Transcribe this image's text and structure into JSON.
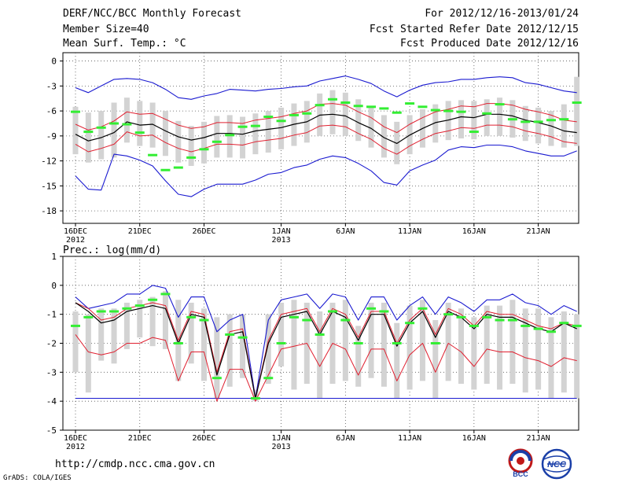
{
  "header": {
    "title": "DERF/NCC/BCC Monthly Forecast",
    "member_size": "Member Size=40",
    "variable": "Mean Surf. Temp.: °C",
    "forecast_range": "For 2012/12/16-2013/01/24",
    "started_refer": "Fcst Started Refer Date 2012/12/15",
    "produced": "Fcst Produced Date 2012/12/16"
  },
  "footer": {
    "url": "http://cmdp.ncc.cma.gov.cn",
    "grads": "GrADS: COLA/IGES",
    "logo_bcc": "BCC",
    "logo_ncc": "NCC"
  },
  "colors": {
    "bar": "#d3d3d3",
    "median": "#33ee33",
    "mean": "#000000",
    "band": "#e02030",
    "envelope": "#1a1ad0"
  },
  "chart_data": [
    {
      "type": "box-line",
      "title": "Mean Surf. Temp.: °C",
      "ylabel": "°C",
      "ylim": [
        -19.5,
        1
      ],
      "yticks": [
        0,
        -3,
        -6,
        -9,
        -12,
        -15,
        -18
      ],
      "x_days": 40,
      "x_ticks": [
        {
          "day": 1,
          "label": "16DEC",
          "sub": "2012"
        },
        {
          "day": 6,
          "label": "21DEC",
          "sub": ""
        },
        {
          "day": 11,
          "label": "26DEC",
          "sub": ""
        },
        {
          "day": 17,
          "label": "1JAN",
          "sub": "2013"
        },
        {
          "day": 22,
          "label": "6JAN",
          "sub": ""
        },
        {
          "day": 27,
          "label": "11JAN",
          "sub": ""
        },
        {
          "day": 32,
          "label": "16JAN",
          "sub": ""
        },
        {
          "day": 37,
          "label": "21JAN",
          "sub": ""
        }
      ],
      "mean": [
        -8.8,
        -9.6,
        -9.2,
        -8.6,
        -7.3,
        -7.7,
        -7.6,
        -8.4,
        -9.1,
        -9.5,
        -9.2,
        -8.7,
        -8.7,
        -8.8,
        -8.4,
        -8.2,
        -8.0,
        -7.6,
        -7.3,
        -6.5,
        -6.4,
        -6.6,
        -7.4,
        -8.1,
        -9.2,
        -9.9,
        -8.9,
        -8.1,
        -7.4,
        -7.1,
        -6.7,
        -6.8,
        -6.4,
        -6.4,
        -6.6,
        -7.1,
        -7.4,
        -7.8,
        -8.4,
        -8.6
      ],
      "band_upper": [
        -7.6,
        -8.3,
        -7.9,
        -7.2,
        -6.1,
        -6.4,
        -6.3,
        -7.0,
        -7.7,
        -8.1,
        -7.9,
        -7.4,
        -7.4,
        -7.5,
        -7.1,
        -6.9,
        -6.7,
        -6.3,
        -6.0,
        -5.2,
        -5.1,
        -5.3,
        -6.1,
        -6.8,
        -7.9,
        -8.6,
        -7.6,
        -6.8,
        -6.1,
        -5.8,
        -5.4,
        -5.5,
        -5.1,
        -5.1,
        -5.3,
        -5.8,
        -6.1,
        -6.5,
        -7.1,
        -7.3
      ],
      "band_lower": [
        -10.0,
        -10.9,
        -10.5,
        -10.0,
        -8.5,
        -9.0,
        -8.9,
        -9.8,
        -10.5,
        -10.9,
        -10.5,
        -10.0,
        -10.0,
        -10.1,
        -9.7,
        -9.5,
        -9.3,
        -8.9,
        -8.6,
        -7.8,
        -7.7,
        -7.9,
        -8.7,
        -9.4,
        -10.5,
        -11.2,
        -10.2,
        -9.4,
        -8.7,
        -8.4,
        -8.0,
        -8.1,
        -7.7,
        -7.7,
        -7.9,
        -8.4,
        -8.7,
        -9.1,
        -9.7,
        -9.9
      ],
      "envelope_max": [
        -3.2,
        -3.8,
        -3.0,
        -2.2,
        -2.1,
        -2.2,
        -2.6,
        -3.4,
        -4.4,
        -4.6,
        -4.2,
        -3.9,
        -3.4,
        -3.5,
        -3.6,
        -3.4,
        -3.3,
        -3.1,
        -3.0,
        -2.4,
        -2.1,
        -1.8,
        -2.2,
        -2.7,
        -3.6,
        -4.3,
        -3.5,
        -2.9,
        -2.6,
        -2.5,
        -2.2,
        -2.2,
        -2.0,
        -1.9,
        -2.0,
        -2.6,
        -2.8,
        -3.2,
        -3.6,
        -3.8
      ],
      "envelope_min": [
        -13.8,
        -15.4,
        -15.5,
        -11.2,
        -11.4,
        -11.9,
        -12.6,
        -14.4,
        -16.0,
        -16.3,
        -15.4,
        -14.8,
        -14.8,
        -14.8,
        -14.3,
        -13.6,
        -13.4,
        -12.8,
        -12.5,
        -11.8,
        -11.4,
        -11.6,
        -12.3,
        -13.2,
        -14.6,
        -14.9,
        -13.2,
        -12.5,
        -11.9,
        -10.7,
        -10.3,
        -10.4,
        -10.1,
        -10.1,
        -10.3,
        -10.8,
        -11.1,
        -11.4,
        -11.4,
        -10.8
      ],
      "box_top": [
        -5.5,
        -6.2,
        -6.0,
        -5.0,
        -4.4,
        -4.8,
        -5.0,
        -6.0,
        -7.2,
        -7.8,
        -7.3,
        -6.6,
        -6.5,
        -6.7,
        -6.3,
        -6.0,
        -5.6,
        -5.1,
        -4.8,
        -3.9,
        -3.5,
        -3.8,
        -4.6,
        -5.5,
        -6.5,
        -7.3,
        -6.5,
        -5.8,
        -5.2,
        -4.8,
        -4.7,
        -4.8,
        -4.6,
        -4.4,
        -4.7,
        -5.4,
        -5.6,
        -6.0,
        -5.2,
        -1.9
      ],
      "box_bottom": [
        -11.2,
        -12.2,
        -11.8,
        -11.6,
        -9.8,
        -10.2,
        -10.4,
        -11.4,
        -12.2,
        -12.6,
        -12.3,
        -11.6,
        -11.6,
        -11.7,
        -11.2,
        -11.0,
        -10.6,
        -10.2,
        -9.8,
        -9.0,
        -8.8,
        -9.0,
        -9.6,
        -10.4,
        -11.6,
        -12.4,
        -11.2,
        -10.4,
        -9.8,
        -9.5,
        -9.3,
        -9.4,
        -9.0,
        -9.0,
        -9.2,
        -9.6,
        -9.9,
        -10.2,
        -10.4,
        -10.2
      ],
      "median": [
        -6.1,
        -8.5,
        -8.0,
        -7.5,
        -7.6,
        -8.6,
        -11.3,
        -13.1,
        -12.8,
        -11.6,
        -10.6,
        -9.7,
        -8.9,
        -7.9,
        -7.8,
        -6.7,
        -7.2,
        -6.5,
        -6.3,
        -5.3,
        -4.6,
        -5.0,
        -5.4,
        -5.5,
        -5.7,
        -6.2,
        -5.1,
        -5.5,
        -5.9,
        -6.0,
        -6.1,
        -8.5,
        -6.3,
        -5.2,
        -7.0,
        -7.3,
        -7.3,
        -7.1,
        -7.0,
        -5.0
      ]
    },
    {
      "type": "box-line",
      "title": "Prec.: log(mm/d)",
      "ylabel": "log(mm/d)",
      "ylim": [
        -5,
        1
      ],
      "yticks": [
        1,
        0,
        -1,
        -2,
        -3,
        -4,
        -5
      ],
      "x_days": 40,
      "x_ticks": [
        {
          "day": 1,
          "label": "16DEC",
          "sub": "2012"
        },
        {
          "day": 6,
          "label": "21DEC",
          "sub": ""
        },
        {
          "day": 11,
          "label": "26DEC",
          "sub": ""
        },
        {
          "day": 17,
          "label": "1JAN",
          "sub": "2013"
        },
        {
          "day": 22,
          "label": "6JAN",
          "sub": ""
        },
        {
          "day": 27,
          "label": "11JAN",
          "sub": ""
        },
        {
          "day": 32,
          "label": "16JAN",
          "sub": ""
        },
        {
          "day": 37,
          "label": "21JAN",
          "sub": ""
        }
      ],
      "mean": [
        -0.6,
        -0.9,
        -1.3,
        -1.2,
        -0.9,
        -0.8,
        -0.7,
        -0.8,
        -2.0,
        -1.0,
        -1.1,
        -3.1,
        -1.7,
        -1.6,
        -3.9,
        -2.0,
        -1.1,
        -1.0,
        -0.9,
        -1.7,
        -0.9,
        -1.1,
        -1.9,
        -1.0,
        -1.0,
        -2.1,
        -1.3,
        -0.9,
        -1.8,
        -0.9,
        -1.1,
        -1.5,
        -1.0,
        -1.1,
        -1.1,
        -1.3,
        -1.5,
        -1.6,
        -1.3,
        -1.5
      ],
      "band_upper": [
        -0.6,
        -0.8,
        -1.2,
        -1.1,
        -0.8,
        -0.7,
        -0.6,
        -0.7,
        -1.9,
        -0.9,
        -1.0,
        -3.0,
        -1.6,
        -1.5,
        -3.9,
        -1.9,
        -1.0,
        -0.9,
        -0.8,
        -1.6,
        -0.8,
        -1.0,
        -1.8,
        -0.9,
        -0.9,
        -2.0,
        -1.2,
        -0.8,
        -1.7,
        -0.8,
        -1.0,
        -1.4,
        -0.9,
        -1.0,
        -1.0,
        -1.2,
        -1.4,
        -1.5,
        -1.3,
        -1.4
      ],
      "band_lower": [
        -1.7,
        -2.3,
        -2.4,
        -2.3,
        -2.0,
        -2.0,
        -1.8,
        -1.9,
        -3.3,
        -2.3,
        -2.3,
        -4.0,
        -2.9,
        -2.9,
        -4.0,
        -3.1,
        -2.2,
        -2.1,
        -2.0,
        -2.8,
        -2.0,
        -2.2,
        -3.1,
        -2.2,
        -2.2,
        -3.3,
        -2.4,
        -2.0,
        -3.0,
        -2.0,
        -2.3,
        -2.8,
        -2.2,
        -2.3,
        -2.3,
        -2.5,
        -2.6,
        -2.8,
        -2.5,
        -2.6
      ],
      "envelope_max": [
        -0.4,
        -0.8,
        -0.7,
        -0.6,
        -0.3,
        -0.3,
        0.0,
        -0.1,
        -1.1,
        -0.4,
        -0.4,
        -1.6,
        -1.2,
        -1.0,
        -3.9,
        -1.2,
        -0.5,
        -0.4,
        -0.3,
        -0.8,
        -0.3,
        -0.4,
        -1.2,
        -0.4,
        -0.4,
        -1.2,
        -0.7,
        -0.4,
        -1.0,
        -0.4,
        -0.6,
        -0.9,
        -0.5,
        -0.5,
        -0.3,
        -0.6,
        -0.7,
        -1.0,
        -0.7,
        -0.9
      ],
      "envelope_min": [
        -3.9,
        -3.9,
        -3.9,
        -3.9,
        -3.9,
        -3.9,
        -3.9,
        -3.9,
        -3.9,
        -3.9,
        -3.9,
        -3.9,
        -3.9,
        -3.9,
        -3.9,
        -3.9,
        -3.9,
        -3.9,
        -3.9,
        -3.9,
        -3.9,
        -3.9,
        -3.9,
        -3.9,
        -3.9,
        -3.9,
        -3.9,
        -3.9,
        -3.9,
        -3.9,
        -3.9,
        -3.9,
        -3.9,
        -3.9,
        -3.9,
        -3.9,
        -3.9,
        -3.9,
        -3.9,
        -3.9
      ],
      "box_top": [
        -0.9,
        -1.0,
        -0.8,
        -0.8,
        -0.6,
        -0.5,
        -0.4,
        -0.2,
        -0.5,
        -0.6,
        -0.8,
        -1.1,
        -1.0,
        -1.0,
        -3.6,
        -1.0,
        -0.6,
        -0.5,
        -0.6,
        -0.9,
        -0.6,
        -0.5,
        -1.4,
        -0.6,
        -0.6,
        -1.3,
        -0.7,
        -0.5,
        -1.2,
        -0.6,
        -0.8,
        -1.1,
        -0.7,
        -0.7,
        -0.5,
        -0.8,
        -0.8,
        -1.1,
        -0.9,
        -1.0
      ],
      "box_bottom": [
        -3.0,
        -3.7,
        -2.6,
        -2.7,
        -2.2,
        -1.8,
        -2.1,
        -2.2,
        -3.3,
        -2.7,
        -3.3,
        -3.9,
        -3.5,
        -3.2,
        -4.0,
        -3.4,
        -2.8,
        -3.6,
        -3.4,
        -3.9,
        -3.4,
        -3.3,
        -3.5,
        -3.2,
        -3.5,
        -3.9,
        -3.6,
        -3.3,
        -3.9,
        -3.3,
        -3.4,
        -3.6,
        -3.4,
        -3.6,
        -3.4,
        -3.7,
        -3.6,
        -3.9,
        -3.7,
        -3.9
      ],
      "median": [
        -1.4,
        -1.1,
        -0.9,
        -0.9,
        -0.8,
        -0.7,
        -0.5,
        -0.3,
        -2.0,
        -1.1,
        -1.2,
        -3.2,
        -1.7,
        -1.8,
        -3.9,
        -3.2,
        -2.0,
        -1.1,
        -1.2,
        -1.7,
        -0.9,
        -1.2,
        -2.0,
        -0.8,
        -0.9,
        -2.0,
        -1.3,
        -0.8,
        -2.0,
        -1.0,
        -1.1,
        -1.4,
        -1.1,
        -1.2,
        -1.2,
        -1.4,
        -1.5,
        -1.6,
        -1.3,
        -1.4
      ]
    }
  ]
}
